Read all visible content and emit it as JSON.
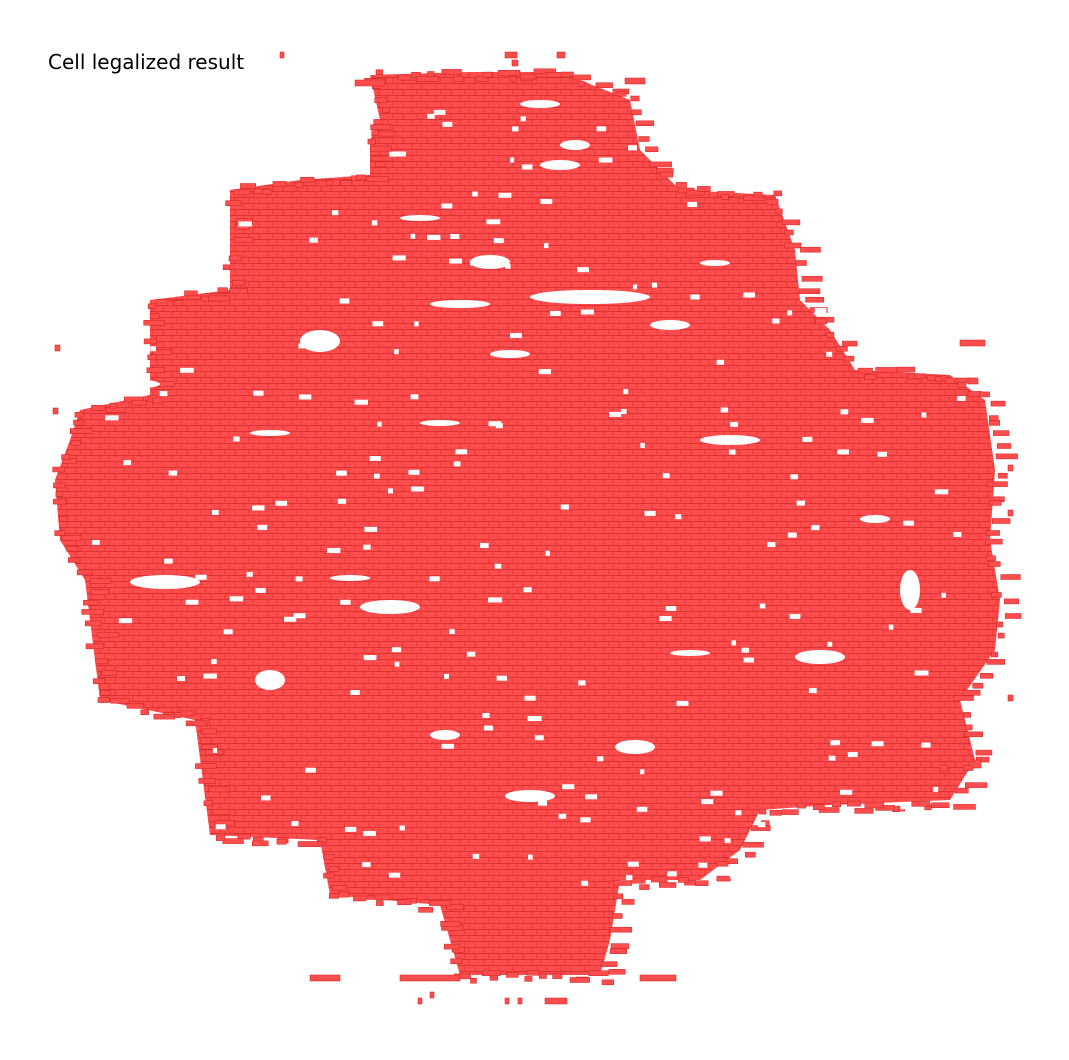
{
  "title": "Cell legalized result",
  "colors": {
    "cell_fill": "#ff4d4d",
    "cell_stroke": "#c81e1e",
    "background": "#ffffff"
  },
  "plot": {
    "shape": "roughly circular cell cluster with holes",
    "cell_orientation": "horizontal rows"
  }
}
